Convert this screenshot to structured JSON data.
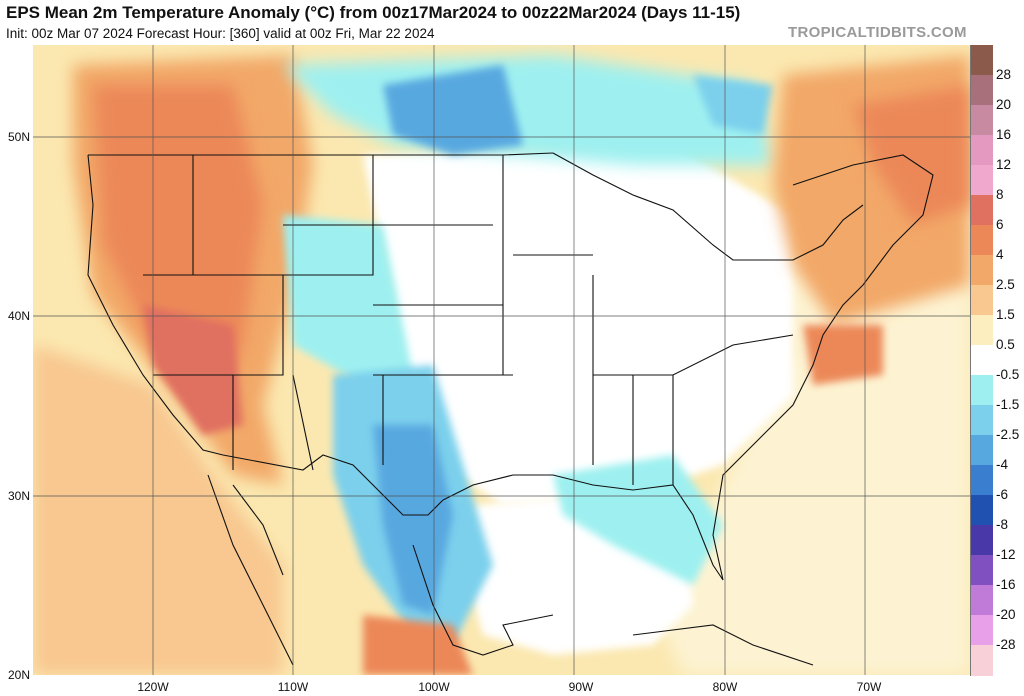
{
  "header": {
    "title": "EPS Mean 2m Temperature Anomaly (°C) from 00z17Mar2024 to 00z22Mar2024 (Days 11-15)",
    "subtitle": "Init: 00z Mar 07 2024   Forecast Hour: [360]   valid at 00z Fri, Mar 22 2024",
    "brand": "TROPICALTIDBITS.COM"
  },
  "map": {
    "lat_labels": [
      "50N",
      "40N",
      "30N",
      "20N"
    ],
    "lon_labels": [
      "120W",
      "110W",
      "100W",
      "90W",
      "80W",
      "70W"
    ]
  },
  "legend": {
    "levels": [
      "28",
      "20",
      "16",
      "12",
      "8",
      "6",
      "4",
      "2.5",
      "1.5",
      "0.5",
      "-0.5",
      "-1.5",
      "-2.5",
      "-4",
      "-6",
      "-8",
      "-12",
      "-16",
      "-20",
      "-28"
    ],
    "colors": [
      "#8c5a4a",
      "#a8707a",
      "#c88aa0",
      "#e49ac0",
      "#f0a8cc",
      "#e07060",
      "#ec8858",
      "#f2a868",
      "#f8c890",
      "#fdeec0",
      "#ffffff",
      "#9ef0f0",
      "#7cd0ec",
      "#58a8e0",
      "#3a7ed0",
      "#2050b0",
      "#4838a8",
      "#8050c0",
      "#c07ad8",
      "#e8a0e8",
      "#f8d0d8"
    ]
  }
}
